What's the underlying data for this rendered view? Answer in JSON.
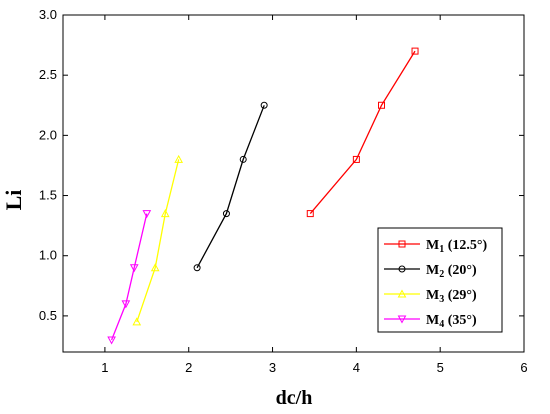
{
  "chart_data": {
    "type": "line",
    "title": "",
    "xlabel": "dc/h",
    "ylabel": "Li",
    "xlim": [
      0.5,
      6
    ],
    "ylim": [
      0.2,
      3.0
    ],
    "xticks": [
      1,
      2,
      3,
      4,
      5,
      6
    ],
    "xtick_labels": [
      "1",
      "2",
      "3",
      "4",
      "5",
      "6"
    ],
    "yticks": [
      0.5,
      1.0,
      1.5,
      2.0,
      2.5,
      3.0
    ],
    "ytick_labels": [
      "0.5",
      "1.0",
      "1.5",
      "2.0",
      "2.5",
      "3.0"
    ],
    "grid": false,
    "legend_position": "lower-right",
    "series": [
      {
        "name": "M1 (12.5°)",
        "legend_main": "M",
        "legend_sub": "1",
        "legend_rest": " (12.5°)",
        "color": "#ff0000",
        "marker": "square",
        "x": [
          3.45,
          4.0,
          4.3,
          4.7
        ],
        "y": [
          1.35,
          1.8,
          2.25,
          2.7
        ]
      },
      {
        "name": "M2 (20°)",
        "legend_main": "M",
        "legend_sub": "2",
        "legend_rest": " (20°)",
        "color": "#000000",
        "marker": "circle",
        "x": [
          2.1,
          2.45,
          2.65,
          2.9
        ],
        "y": [
          0.9,
          1.35,
          1.8,
          2.25
        ]
      },
      {
        "name": "M3 (29°)",
        "legend_main": "M",
        "legend_sub": "3",
        "legend_rest": " (29°)",
        "color": "#ffff00",
        "marker": "triangle-up",
        "x": [
          1.38,
          1.6,
          1.72,
          1.88
        ],
        "y": [
          0.45,
          0.9,
          1.35,
          1.8
        ]
      },
      {
        "name": "M4 (35°)",
        "legend_main": "M",
        "legend_sub": "4",
        "legend_rest": " (35°)",
        "color": "#ff00ff",
        "marker": "triangle-down",
        "x": [
          1.08,
          1.25,
          1.35,
          1.5
        ],
        "y": [
          0.3,
          0.6,
          0.9,
          1.35
        ]
      }
    ]
  }
}
